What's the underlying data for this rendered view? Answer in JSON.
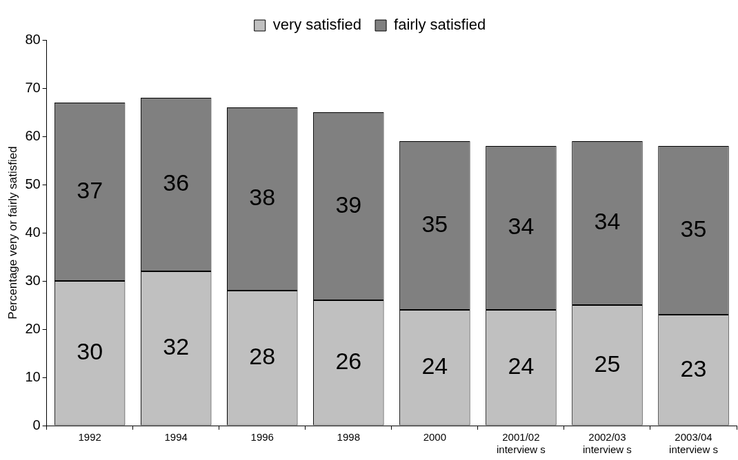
{
  "chart_data": {
    "type": "bar",
    "stacked": true,
    "ylabel": "Percentage very or fairly satisfied",
    "categories": [
      "1992",
      "1994",
      "1996",
      "1998",
      "2000",
      "2001/02\ninterview s",
      "2002/03\ninterview s",
      "2003/04\ninterview s"
    ],
    "series": [
      {
        "name": "very satisfied",
        "color": "#c0c0c0",
        "values": [
          30,
          32,
          28,
          26,
          24,
          24,
          25,
          23
        ]
      },
      {
        "name": "fairly satisfied",
        "color": "#808080",
        "values": [
          37,
          36,
          38,
          39,
          35,
          34,
          34,
          35
        ]
      }
    ],
    "ylim": [
      0,
      80
    ],
    "yticks": [
      0,
      10,
      20,
      30,
      40,
      50,
      60,
      70,
      80
    ],
    "grid": false,
    "legend": "top",
    "data_labels": true
  }
}
